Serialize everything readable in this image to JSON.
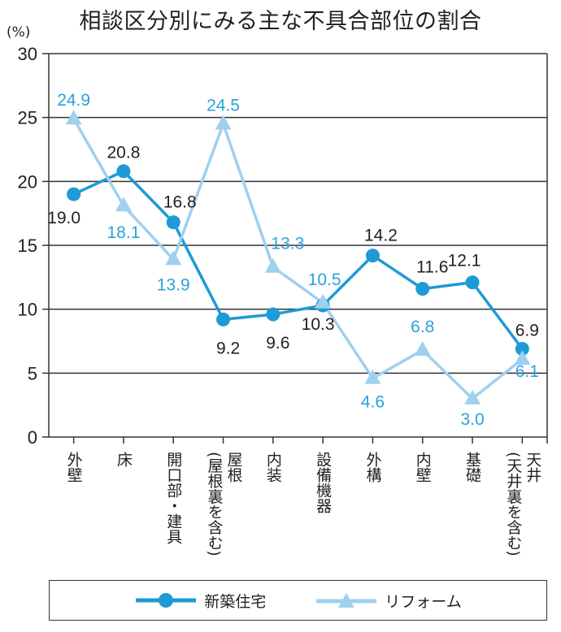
{
  "chart_data": {
    "type": "line",
    "title": "相談区分別にみる主な不具合部位の割合",
    "ylabel": "(%)",
    "xlabel": "",
    "ylim": [
      0,
      30
    ],
    "yticks": [
      "0",
      "5",
      "10",
      "15",
      "20",
      "25",
      "30"
    ],
    "grid": true,
    "legend_position": "bottom",
    "categories": [
      {
        "main": "外壁",
        "sub": ""
      },
      {
        "main": "床",
        "sub": ""
      },
      {
        "main": "開口部・建具",
        "sub": ""
      },
      {
        "main": "屋根",
        "sub": "(屋根裏を含む)"
      },
      {
        "main": "内装",
        "sub": ""
      },
      {
        "main": "設備機器",
        "sub": ""
      },
      {
        "main": "外構",
        "sub": ""
      },
      {
        "main": "内壁",
        "sub": ""
      },
      {
        "main": "基礎",
        "sub": ""
      },
      {
        "main": "天井",
        "sub": "(天井裏を含む)"
      }
    ],
    "series": [
      {
        "name": "新築住宅",
        "marker": "circle",
        "color": "#1e9ad6",
        "label_color": "#231f20",
        "values": [
          19.0,
          20.8,
          16.8,
          9.2,
          9.6,
          10.3,
          14.2,
          11.6,
          12.1,
          6.9
        ],
        "labels": [
          "19.0",
          "20.8",
          "16.8",
          "9.2",
          "9.6",
          "10.3",
          "14.2",
          "11.6",
          "12.1",
          "6.9"
        ]
      },
      {
        "name": "リフォーム",
        "marker": "triangle",
        "color": "#9fd0ef",
        "label_color": "#29a3db",
        "values": [
          24.9,
          18.1,
          13.9,
          24.5,
          13.3,
          10.5,
          4.6,
          6.8,
          3.0,
          6.1
        ],
        "labels": [
          "24.9",
          "18.1",
          "13.9",
          "24.5",
          "13.3",
          "10.5",
          "4.6",
          "6.8",
          "3.0",
          "6.1"
        ]
      }
    ]
  }
}
